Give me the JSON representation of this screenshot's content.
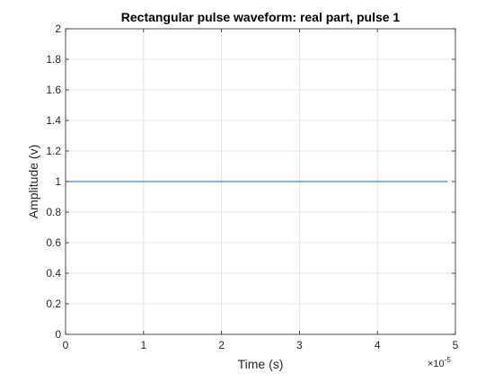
{
  "chart_data": {
    "type": "line",
    "title": "Rectangular pulse waveform: real part, pulse 1",
    "xlabel": "Time (s)",
    "ylabel": "Amplitude (v)",
    "xlim": [
      0,
      5
    ],
    "ylim": [
      0,
      2
    ],
    "x_exponent_label": "×10",
    "x_exponent_power": "-5",
    "grid": true,
    "x_ticks": [
      {
        "value": 0,
        "label": "0"
      },
      {
        "value": 1,
        "label": "1"
      },
      {
        "value": 2,
        "label": "2"
      },
      {
        "value": 3,
        "label": "3"
      },
      {
        "value": 4,
        "label": "4"
      },
      {
        "value": 5,
        "label": "5"
      }
    ],
    "y_ticks": [
      {
        "value": 0,
        "label": "0"
      },
      {
        "value": 0.2,
        "label": "0.2"
      },
      {
        "value": 0.4,
        "label": "0.4"
      },
      {
        "value": 0.6,
        "label": "0.6"
      },
      {
        "value": 0.8,
        "label": "0.8"
      },
      {
        "value": 1,
        "label": "1"
      },
      {
        "value": 1.2,
        "label": "1.2"
      },
      {
        "value": 1.4,
        "label": "1.4"
      },
      {
        "value": 1.6,
        "label": "1.6"
      },
      {
        "value": 1.8,
        "label": "1.8"
      },
      {
        "value": 2,
        "label": "2"
      }
    ],
    "series": [
      {
        "color": "#0072bd",
        "x": [
          0,
          4.9
        ],
        "y": [
          1,
          1
        ]
      }
    ]
  }
}
